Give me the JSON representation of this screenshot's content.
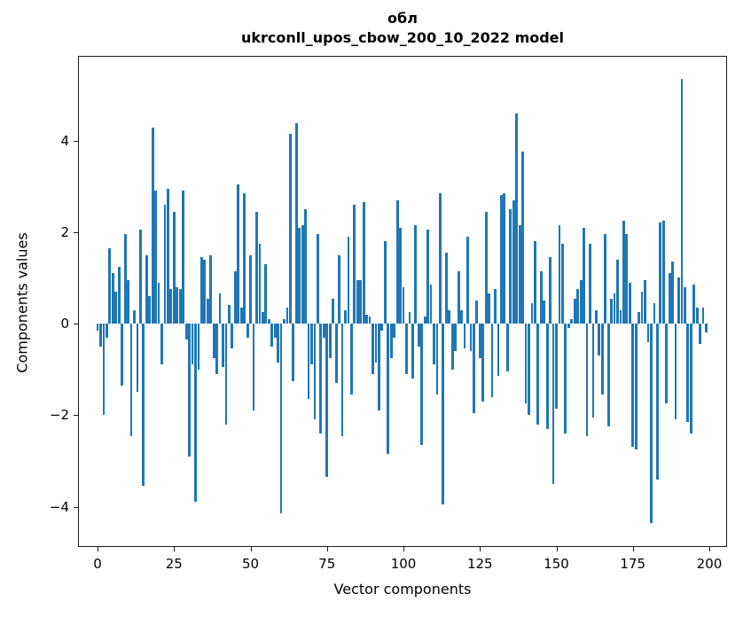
{
  "title_line1": "обл",
  "title_line2": "ukrconll_upos_cbow_200_10_2022 model",
  "chart_data": {
    "type": "bar",
    "title": "обл — ukrconll_upos_cbow_200_10_2022 model",
    "xlabel": "Vector components",
    "ylabel": "Components values",
    "x_ticks": [
      0,
      25,
      50,
      75,
      100,
      125,
      150,
      175,
      200
    ],
    "y_ticks": [
      -4,
      -2,
      0,
      2,
      4
    ],
    "xlim": [
      -6.4,
      205.8
    ],
    "ylim": [
      -4.88,
      5.85
    ],
    "grid": false,
    "legend": "none",
    "bar_color": "#1f77b4",
    "n_components": 200,
    "values": [
      -0.15,
      -0.5,
      -2.0,
      -0.3,
      1.65,
      1.1,
      0.7,
      1.25,
      -1.35,
      1.95,
      0.95,
      -2.45,
      0.3,
      -1.5,
      2.05,
      -3.55,
      1.5,
      0.6,
      4.28,
      2.9,
      0.9,
      -0.9,
      2.6,
      2.95,
      0.75,
      2.45,
      0.8,
      0.75,
      2.9,
      -0.35,
      -2.9,
      -0.9,
      -3.9,
      -1.0,
      1.45,
      1.4,
      0.55,
      1.5,
      -0.75,
      -1.1,
      0.65,
      -0.95,
      -2.2,
      0.4,
      -0.55,
      1.15,
      3.05,
      0.35,
      2.85,
      -0.3,
      1.5,
      -1.9,
      2.45,
      1.75,
      0.25,
      1.3,
      0.1,
      -0.5,
      -0.3,
      -0.85,
      -4.15,
      0.1,
      0.35,
      4.15,
      -1.25,
      4.38,
      2.1,
      2.15,
      2.5,
      -1.65,
      -0.9,
      -2.1,
      1.95,
      -2.4,
      -0.3,
      -3.35,
      -0.75,
      0.55,
      -1.3,
      1.5,
      -2.45,
      0.3,
      1.9,
      -1.55,
      2.6,
      0.95,
      0.95,
      2.65,
      0.2,
      0.15,
      -1.1,
      -0.85,
      -1.9,
      -0.15,
      1.8,
      -2.85,
      -0.75,
      -0.3,
      2.7,
      2.1,
      0.8,
      -1.1,
      0.25,
      -1.2,
      2.15,
      -0.5,
      -2.65,
      0.15,
      2.05,
      0.85,
      -0.9,
      -1.55,
      2.85,
      -3.95,
      1.55,
      0.3,
      -1.0,
      -0.6,
      1.15,
      0.3,
      -0.55,
      1.9,
      -0.6,
      -1.95,
      0.5,
      -0.75,
      -1.7,
      2.45,
      0.65,
      -1.6,
      0.75,
      -1.15,
      2.8,
      2.85,
      -1.05,
      2.5,
      2.7,
      4.6,
      2.15,
      3.75,
      -1.75,
      -2.0,
      0.45,
      1.8,
      -2.2,
      1.15,
      0.5,
      -2.3,
      1.45,
      -3.5,
      -1.85,
      2.15,
      1.75,
      -2.4,
      -0.1,
      0.1,
      0.55,
      0.75,
      0.95,
      2.1,
      -2.45,
      1.75,
      -2.05,
      0.3,
      -0.7,
      -1.55,
      1.95,
      -2.25,
      0.55,
      0.65,
      1.4,
      0.3,
      2.25,
      1.95,
      0.9,
      -2.7,
      -2.75,
      0.25,
      0.7,
      0.95,
      -0.4,
      -4.35,
      0.45,
      -3.4,
      2.2,
      2.25,
      -1.75,
      1.1,
      1.35,
      -2.1,
      1.0,
      5.35,
      0.8,
      -2.15,
      -2.4,
      0.85,
      0.35,
      -0.45,
      0.35,
      -0.2
    ]
  }
}
